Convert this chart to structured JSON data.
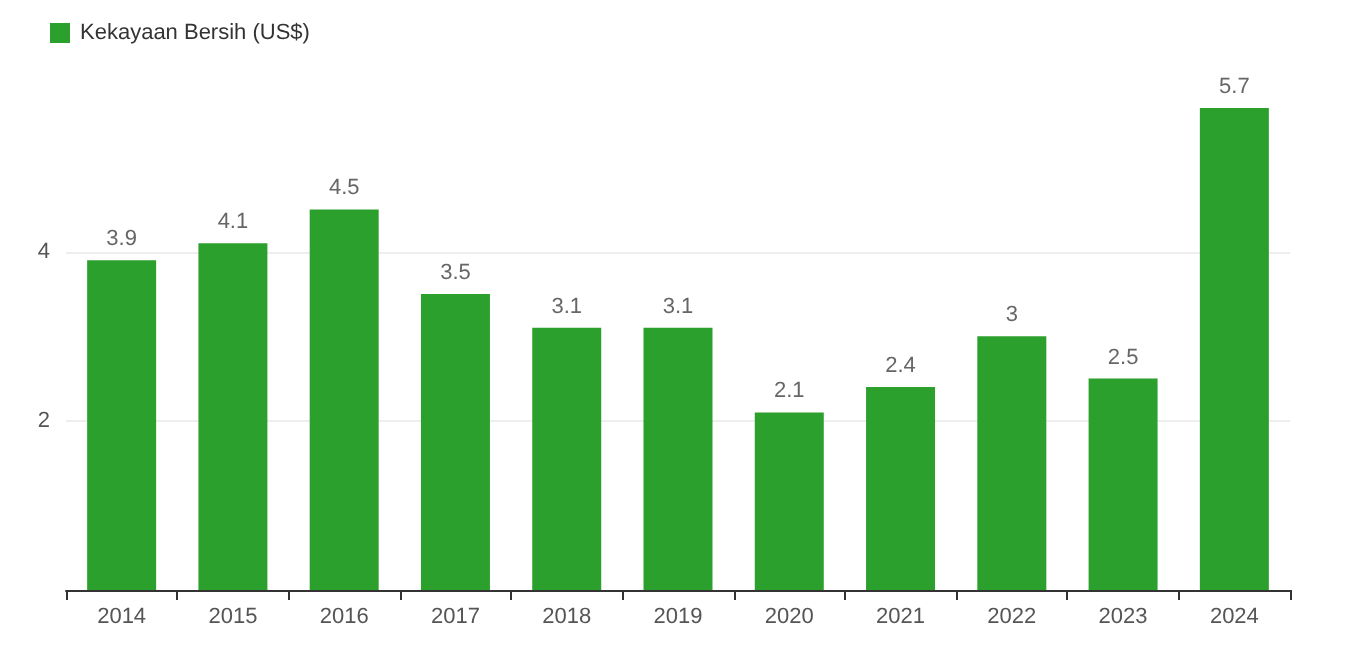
{
  "chart_data": {
    "type": "bar",
    "categories": [
      "2014",
      "2015",
      "2016",
      "2017",
      "2018",
      "2019",
      "2020",
      "2021",
      "2022",
      "2023",
      "2024"
    ],
    "series": [
      {
        "name": "Kekayaan Bersih (US$)",
        "color": "#2ca02c",
        "values": [
          3.9,
          4.1,
          4.5,
          3.5,
          3.1,
          3.1,
          2.1,
          2.4,
          3,
          2.5,
          5.7
        ]
      }
    ],
    "ylim": [
      0,
      5.7
    ],
    "yticks": [
      {
        "value": 0,
        "label": null
      },
      2,
      4
    ],
    "grid": "y",
    "legend": "top left",
    "data_labels": true
  }
}
